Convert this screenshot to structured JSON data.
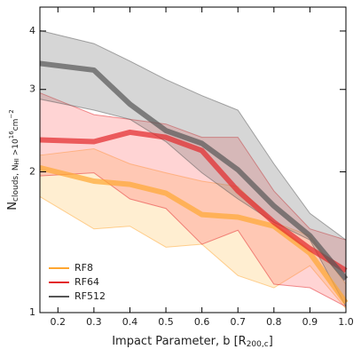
{
  "chart_data": {
    "type": "line-band",
    "x_label": {
      "main": "Impact Parameter, b [R",
      "sub": "200,c",
      "end": "]"
    },
    "y_label": {
      "main": "N",
      "sub": "clouds, N",
      "subsub": "HI",
      "sub2": " >10",
      "sup": "16",
      "unit": "cm",
      "unitsup": "−2"
    },
    "x": [
      0.15,
      0.3,
      0.4,
      0.5,
      0.6,
      0.7,
      0.8,
      0.9,
      1.0
    ],
    "series": [
      {
        "name": "RF8",
        "color": "#ffa630",
        "band_color": "#ffc766",
        "values": [
          2.04,
          1.91,
          1.88,
          1.8,
          1.62,
          1.6,
          1.53,
          1.34,
          1.05
        ],
        "upper": [
          2.17,
          2.24,
          2.08,
          1.99,
          1.91,
          1.86,
          1.56,
          1.46,
          1.15
        ],
        "lower": [
          1.77,
          1.51,
          1.53,
          1.38,
          1.4,
          1.2,
          1.13,
          1.26,
          1.02
        ]
      },
      {
        "name": "RF64",
        "color": "#e3262a",
        "band_color": "#ff6f6f",
        "values": [
          2.34,
          2.32,
          2.43,
          2.37,
          2.22,
          1.82,
          1.56,
          1.37,
          1.23
        ],
        "upper": [
          2.95,
          2.65,
          2.59,
          2.53,
          2.37,
          2.37,
          1.82,
          1.51,
          1.43
        ],
        "lower": [
          1.96,
          1.99,
          1.75,
          1.67,
          1.4,
          1.5,
          1.15,
          1.13,
          1.03
        ]
      },
      {
        "name": "RF512",
        "color": "#555555",
        "band_color": "#777777",
        "values": [
          3.41,
          3.3,
          2.79,
          2.45,
          2.3,
          2.02,
          1.69,
          1.46,
          1.18
        ],
        "upper": [
          4.01,
          3.76,
          3.45,
          3.15,
          2.91,
          2.71,
          2.08,
          1.63,
          1.43
        ],
        "lower": [
          2.86,
          2.71,
          2.59,
          2.32,
          1.99,
          1.75,
          1.56,
          1.43,
          1.03
        ]
      }
    ],
    "xlim": [
      0.15,
      1.0
    ],
    "xticks": [
      0.2,
      0.3,
      0.4,
      0.5,
      0.6,
      0.7,
      0.8,
      0.9,
      {
        "value": 1,
        "label": "1.0"
      }
    ],
    "ylim": [
      1,
      4.5
    ],
    "yticks": [
      1,
      2,
      3,
      4
    ],
    "log_y": true,
    "legend": "lower left"
  }
}
